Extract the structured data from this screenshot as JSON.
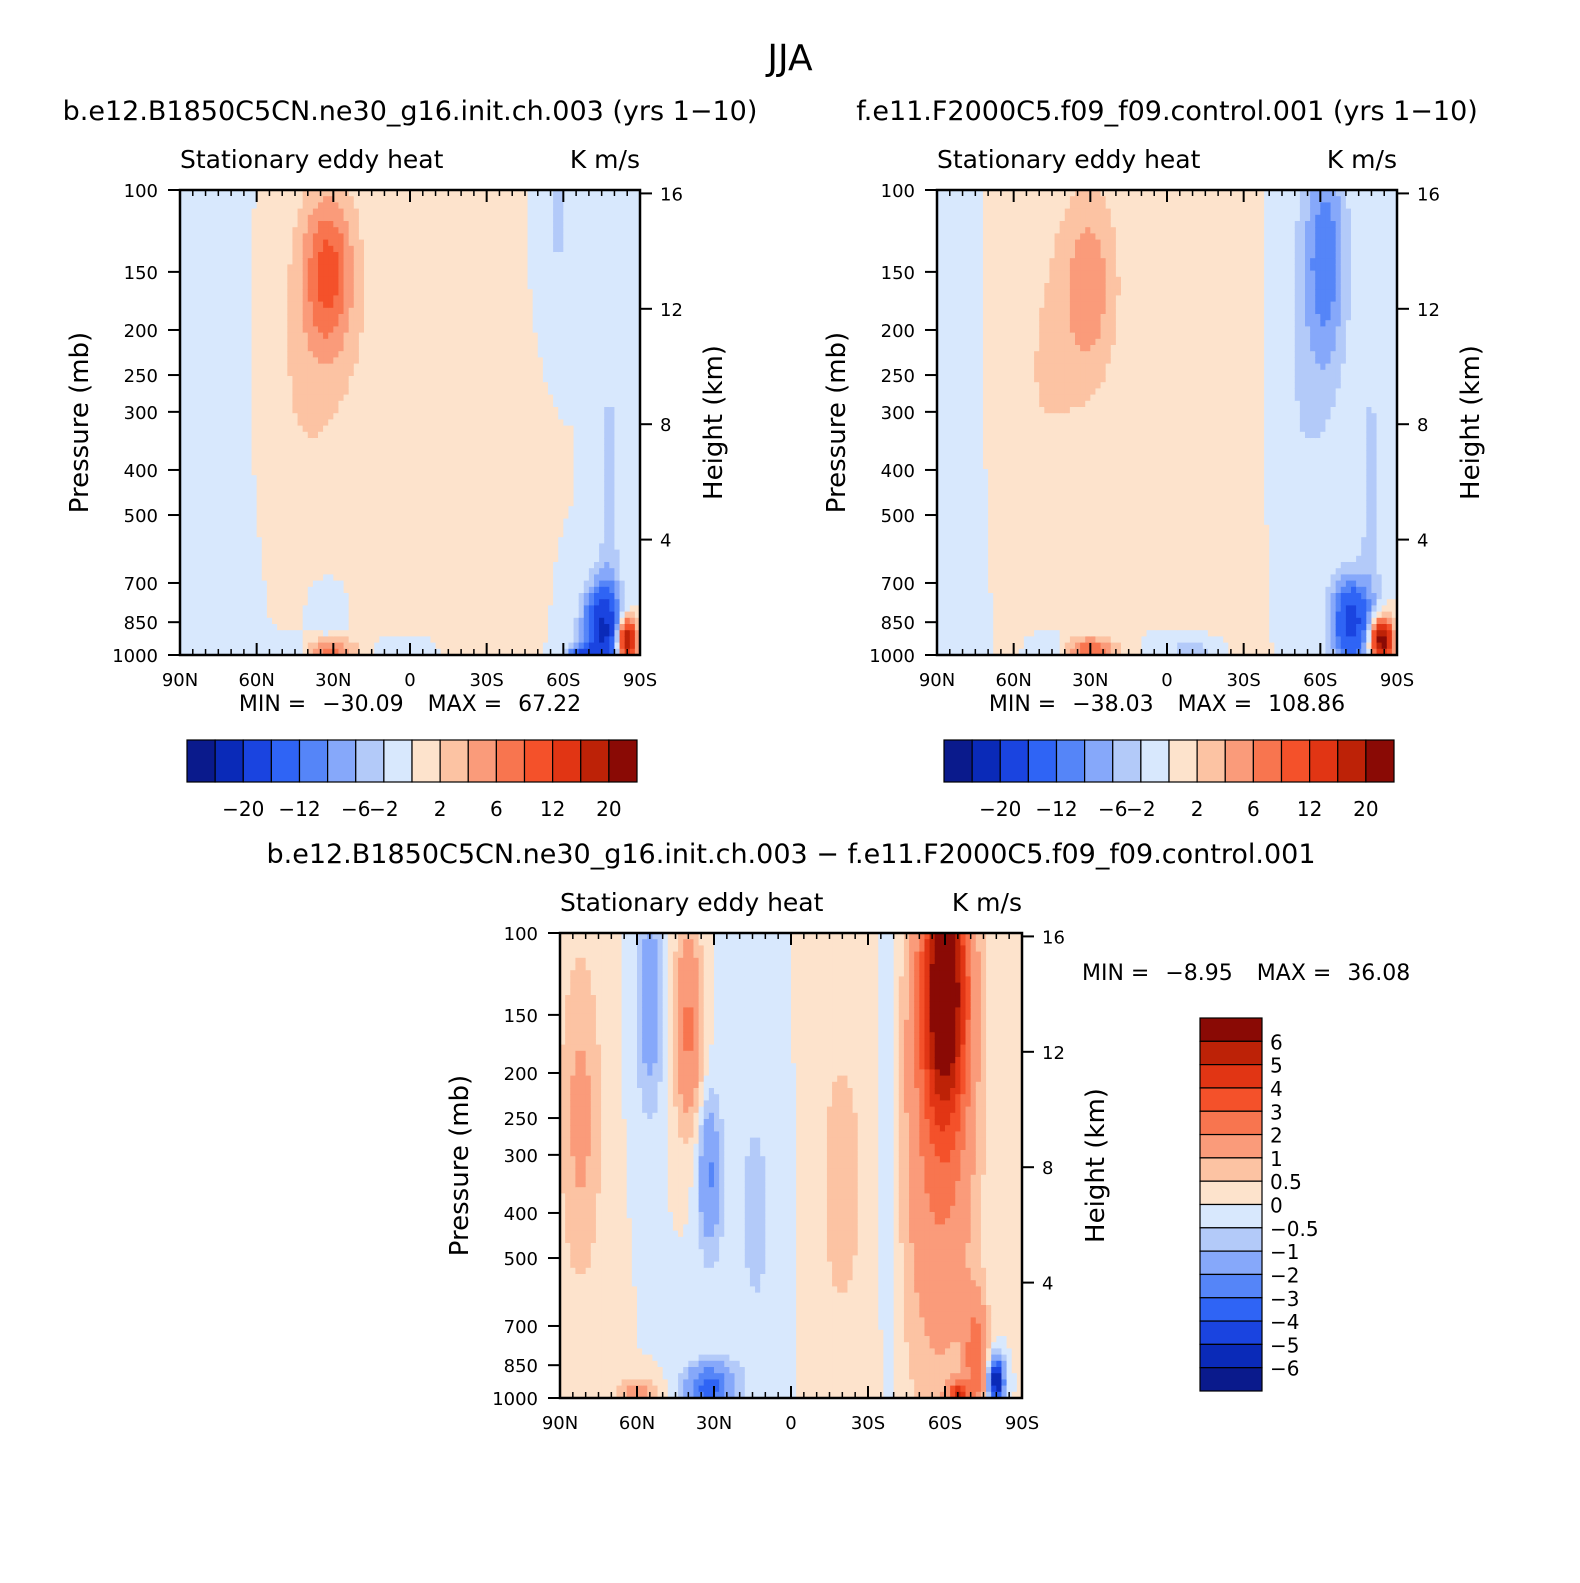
{
  "figure": {
    "title": "JJA"
  },
  "chart_data": [
    {
      "type": "heatmap",
      "title": "b.e12.B1850C5CN.ne30_g16.init.ch.003 (yrs 1−10)",
      "subtitle_left": "Stationary eddy heat",
      "subtitle_right": "K m/s",
      "ylabel": "Pressure (mb)",
      "ylabel_right": "Height (km)",
      "x_ticks": [
        "90N",
        "60N",
        "30N",
        "0",
        "30S",
        "60S",
        "90S"
      ],
      "y_ticks": [
        "100",
        "150",
        "200",
        "250",
        "300",
        "400",
        "500",
        "700",
        "850",
        "1000"
      ],
      "y_ticks_right": [
        "16",
        "12",
        "8",
        "4"
      ],
      "min_label": "MIN =",
      "min_value": "−30.09",
      "max_label": "MAX =",
      "max_value": "67.22",
      "colorbar_labels": [
        "−20",
        "−12",
        "−6",
        "−2",
        "2",
        "6",
        "12",
        "20"
      ],
      "contour_levels": [
        -20,
        -16,
        -12,
        -8,
        -6,
        -4,
        -2,
        0,
        2,
        4,
        6,
        8,
        12,
        16,
        20
      ],
      "features": [
        {
          "lat": 32,
          "p": 150,
          "value": 8,
          "sx": 7,
          "sp": 0.28
        },
        {
          "lat": 42,
          "p": 250,
          "value": 2,
          "sx": 12,
          "sp": 0.6
        },
        {
          "lat": 10,
          "p": 300,
          "value": 1.2,
          "sx": 16,
          "sp": 0.9
        },
        {
          "lat": -22,
          "p": 550,
          "value": 1,
          "sx": 10,
          "sp": 0.9
        },
        {
          "lat": 75,
          "p": 400,
          "value": -0.8,
          "sx": 12,
          "sp": 1.2
        },
        {
          "lat": 32,
          "p": 820,
          "value": -2.5,
          "sx": 5,
          "sp": 0.12
        },
        {
          "lat": 32,
          "p": 980,
          "value": 7,
          "sx": 7,
          "sp": 0.05
        },
        {
          "lat": 45,
          "p": 980,
          "value": -3,
          "sx": 5,
          "sp": 0.05
        },
        {
          "lat": 2,
          "p": 980,
          "value": -2.5,
          "sx": 8,
          "sp": 0.05
        },
        {
          "lat": -58,
          "p": 115,
          "value": -2.5,
          "sx": 4,
          "sp": 0.25
        },
        {
          "lat": -78,
          "p": 480,
          "value": -3,
          "sx": 3,
          "sp": 0.6
        },
        {
          "lat": -75,
          "p": 880,
          "value": -16,
          "sx": 5,
          "sp": 0.15
        },
        {
          "lat": -85,
          "p": 930,
          "value": 22,
          "sx": 2.5,
          "sp": 0.07
        },
        {
          "lat": -67,
          "p": 995,
          "value": -10,
          "sx": 4,
          "sp": 0.03
        }
      ]
    },
    {
      "type": "heatmap",
      "title": "f.e11.F2000C5.f09_f09.control.001 (yrs 1−10)",
      "subtitle_left": "Stationary eddy heat",
      "subtitle_right": "K m/s",
      "ylabel": "Pressure (mb)",
      "ylabel_right": "Height (km)",
      "x_ticks": [
        "90N",
        "60N",
        "30N",
        "0",
        "30S",
        "60S",
        "90S"
      ],
      "y_ticks": [
        "100",
        "150",
        "200",
        "250",
        "300",
        "400",
        "500",
        "700",
        "850",
        "1000"
      ],
      "y_ticks_right": [
        "16",
        "12",
        "8",
        "4"
      ],
      "min_label": "MIN =",
      "min_value": "−38.03",
      "max_label": "MAX =",
      "max_value": "108.86",
      "colorbar_labels": [
        "−20",
        "−12",
        "−6",
        "−2",
        "2",
        "6",
        "12",
        "20"
      ],
      "contour_levels": [
        -20,
        -16,
        -12,
        -8,
        -6,
        -4,
        -2,
        0,
        2,
        4,
        6,
        8,
        12,
        16,
        20
      ],
      "features": [
        {
          "lat": 30,
          "p": 160,
          "value": 5,
          "sx": 8,
          "sp": 0.35
        },
        {
          "lat": 48,
          "p": 250,
          "value": 2,
          "sx": 12,
          "sp": 0.6
        },
        {
          "lat": -28,
          "p": 350,
          "value": 1,
          "sx": 14,
          "sp": 1.0
        },
        {
          "lat": 80,
          "p": 400,
          "value": -1.2,
          "sx": 5,
          "sp": 1.0
        },
        {
          "lat": -62,
          "p": 140,
          "value": -7,
          "sx": 6,
          "sp": 0.4
        },
        {
          "lat": -52,
          "p": 300,
          "value": -2,
          "sx": 10,
          "sp": 0.8
        },
        {
          "lat": -80,
          "p": 500,
          "value": -3,
          "sx": 3,
          "sp": 0.6
        },
        {
          "lat": -72,
          "p": 850,
          "value": -14,
          "sx": 5,
          "sp": 0.15
        },
        {
          "lat": -84,
          "p": 930,
          "value": 24,
          "sx": 3,
          "sp": 0.07
        },
        {
          "lat": 30,
          "p": 980,
          "value": 8,
          "sx": 7,
          "sp": 0.05
        },
        {
          "lat": 45,
          "p": 980,
          "value": -2.5,
          "sx": 5,
          "sp": 0.05
        },
        {
          "lat": -10,
          "p": 980,
          "value": -3,
          "sx": 8,
          "sp": 0.05
        }
      ]
    },
    {
      "type": "heatmap",
      "title": "b.e12.B1850C5CN.ne30_g16.init.ch.003 − f.e11.F2000C5.f09_f09.control.001",
      "subtitle_left": "Stationary eddy heat",
      "subtitle_right": "K m/s",
      "ylabel": "Pressure (mb)",
      "ylabel_right": "Height (km)",
      "x_ticks": [
        "90N",
        "60N",
        "30N",
        "0",
        "30S",
        "60S",
        "90S"
      ],
      "y_ticks": [
        "100",
        "150",
        "200",
        "250",
        "300",
        "400",
        "500",
        "700",
        "850",
        "1000"
      ],
      "y_ticks_right": [
        "16",
        "12",
        "8",
        "4"
      ],
      "min_label": "MIN =",
      "min_value": "−8.95",
      "max_label": "MAX =",
      "max_value": "36.08",
      "colorbar_labels": [
        "6",
        "5",
        "4",
        "3",
        "2",
        "1",
        "0.5",
        "0",
        "−0.5",
        "−1",
        "−2",
        "−3",
        "−4",
        "−5",
        "−6"
      ],
      "contour_levels": [
        -6,
        -5,
        -4,
        -3,
        -2,
        -1,
        -0.5,
        0,
        0.5,
        1,
        2,
        3,
        4,
        5,
        6
      ],
      "features": [
        {
          "lat": -60,
          "p": 130,
          "value": 7,
          "sx": 6,
          "sp": 0.45
        },
        {
          "lat": -58,
          "p": 280,
          "value": 2,
          "sx": 10,
          "sp": 0.9
        },
        {
          "lat": 40,
          "p": 160,
          "value": 2.2,
          "sx": 4,
          "sp": 0.35
        },
        {
          "lat": 55,
          "p": 140,
          "value": -1.5,
          "sx": 4,
          "sp": 0.4
        },
        {
          "lat": 82,
          "p": 250,
          "value": 1.2,
          "sx": 6,
          "sp": 0.6
        },
        {
          "lat": 32,
          "p": 330,
          "value": -2,
          "sx": 3,
          "sp": 0.25
        },
        {
          "lat": 12,
          "p": 400,
          "value": -0.6,
          "sx": 12,
          "sp": 0.9
        },
        {
          "lat": -38,
          "p": 300,
          "value": -0.8,
          "sx": 3,
          "sp": 0.9
        },
        {
          "lat": -18,
          "p": 350,
          "value": 0.6,
          "sx": 14,
          "sp": 1.0
        },
        {
          "lat": 32,
          "p": 950,
          "value": -3.5,
          "sx": 6,
          "sp": 0.08
        },
        {
          "lat": 60,
          "p": 980,
          "value": 1.6,
          "sx": 5,
          "sp": 0.05
        },
        {
          "lat": -80,
          "p": 920,
          "value": -6.5,
          "sx": 2,
          "sp": 0.08
        },
        {
          "lat": -72,
          "p": 820,
          "value": 2.5,
          "sx": 3,
          "sp": 0.2
        },
        {
          "lat": -65,
          "p": 985,
          "value": 4.5,
          "sx": 2.5,
          "sp": 0.04
        }
      ]
    }
  ]
}
